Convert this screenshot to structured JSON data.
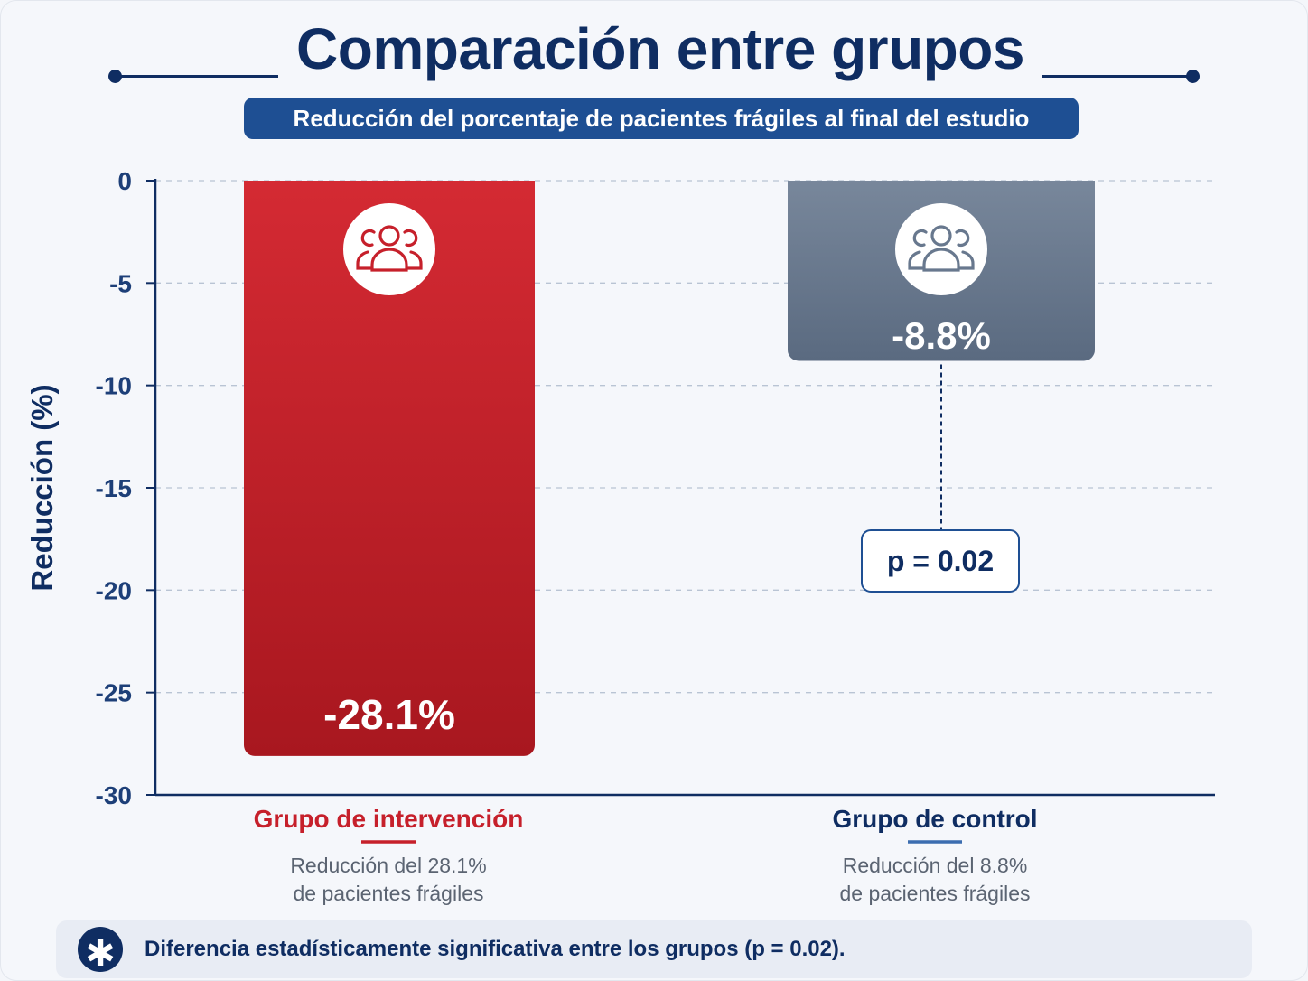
{
  "title": "Comparación entre grupos",
  "subtitle": "Reducción del porcentaje de pacientes frágiles al final del estudio",
  "colors": {
    "intervention": "#c6202b",
    "control": "#68788e",
    "navy": "#0f2d62"
  },
  "chart_data": {
    "type": "bar",
    "categories": [
      "Grupo de intervención",
      "Grupo de control"
    ],
    "values": [
      -28.1,
      -8.8
    ],
    "value_labels": [
      "-28.1%",
      "-8.8%"
    ],
    "ylabel": "Reducción (%)",
    "ylim": [
      -30,
      0
    ],
    "yticks": [
      0,
      -5,
      -10,
      -15,
      -20,
      -25,
      -30
    ],
    "grid": true,
    "icons": [
      "users-group-icon",
      "users-group-icon"
    ],
    "descriptions": [
      {
        "line1": "Reducción del 28.1%",
        "line2": "de pacientes frágiles"
      },
      {
        "line1": "Reducción del 8.8%",
        "line2": "de pacientes frágiles"
      }
    ],
    "annotation": "p = 0.02"
  },
  "footer": {
    "icon": "asterisk-icon",
    "icon_glyph": "✱",
    "text": "Diferencia estadísticamente significativa entre los grupos (p = 0.02)."
  }
}
